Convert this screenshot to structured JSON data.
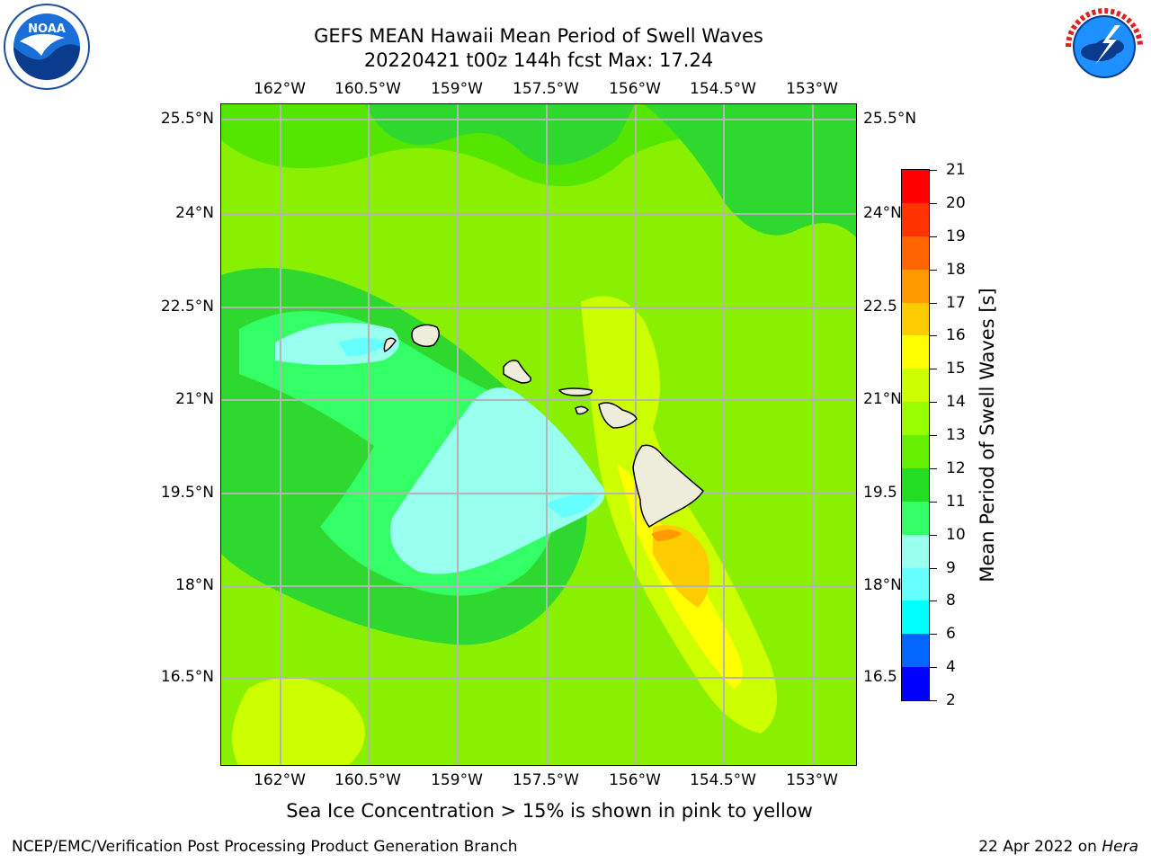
{
  "title": {
    "line1": "GEFS MEAN Hawaii Mean Period of Swell Waves",
    "line2": "20220421 t00z 144h fcst   Max: 17.24"
  },
  "axes": {
    "lon_ticks": [
      {
        "label": "162°W",
        "value": -162
      },
      {
        "label": "160.5°W",
        "value": -160.5
      },
      {
        "label": "159°W",
        "value": -159
      },
      {
        "label": "157.5°W",
        "value": -157.5
      },
      {
        "label": "156°W",
        "value": -156
      },
      {
        "label": "154.5°W",
        "value": -154.5
      },
      {
        "label": "153°W",
        "value": -153
      }
    ],
    "lat_ticks": [
      {
        "label": "25.5°N",
        "value": 25.5
      },
      {
        "label": "24°N",
        "value": 24
      },
      {
        "label": "22.5°N",
        "value": 22.5
      },
      {
        "label": "21°N",
        "value": 21
      },
      {
        "label": "19.5°N",
        "value": 19.5
      },
      {
        "label": "18°N",
        "value": 18
      },
      {
        "label": "16.5°N",
        "value": 16.5
      }
    ],
    "lat_right_labels": [
      "25.5°N",
      "24°N",
      "22.5",
      "21°N",
      "19.5",
      "18°N",
      "16.5"
    ]
  },
  "colorbar": {
    "title": "Mean Period of Swell Waves [s]",
    "levels": [
      "2",
      "4",
      "6",
      "8",
      "9",
      "10",
      "11",
      "12",
      "13",
      "14",
      "15",
      "16",
      "17",
      "18",
      "19",
      "20",
      "21"
    ],
    "colors": [
      "#0000ff",
      "#0066ff",
      "#00ffff",
      "#66ffff",
      "#99ffee",
      "#33ff66",
      "#22dd22",
      "#66ee00",
      "#99ff00",
      "#ccff00",
      "#ffff00",
      "#ffcc00",
      "#ff9900",
      "#ff6600",
      "#ff3300",
      "#ff0000"
    ]
  },
  "map_colors": {
    "ocean_default": "#88f000",
    "land": "#efeedd",
    "grid": "#b4b4b4"
  },
  "subtitle": "Sea Ice Concentration > 15% is shown in pink to yellow",
  "footer": {
    "left": "NCEP/EMC/Verification Post Processing Product Generation Branch",
    "right_prefix": "22 Apr 2022 on ",
    "right_machine": "Hera"
  },
  "logos": {
    "noaa_text": "NOAA",
    "nws_text": "NATIONAL WEATHER SERVICE"
  }
}
